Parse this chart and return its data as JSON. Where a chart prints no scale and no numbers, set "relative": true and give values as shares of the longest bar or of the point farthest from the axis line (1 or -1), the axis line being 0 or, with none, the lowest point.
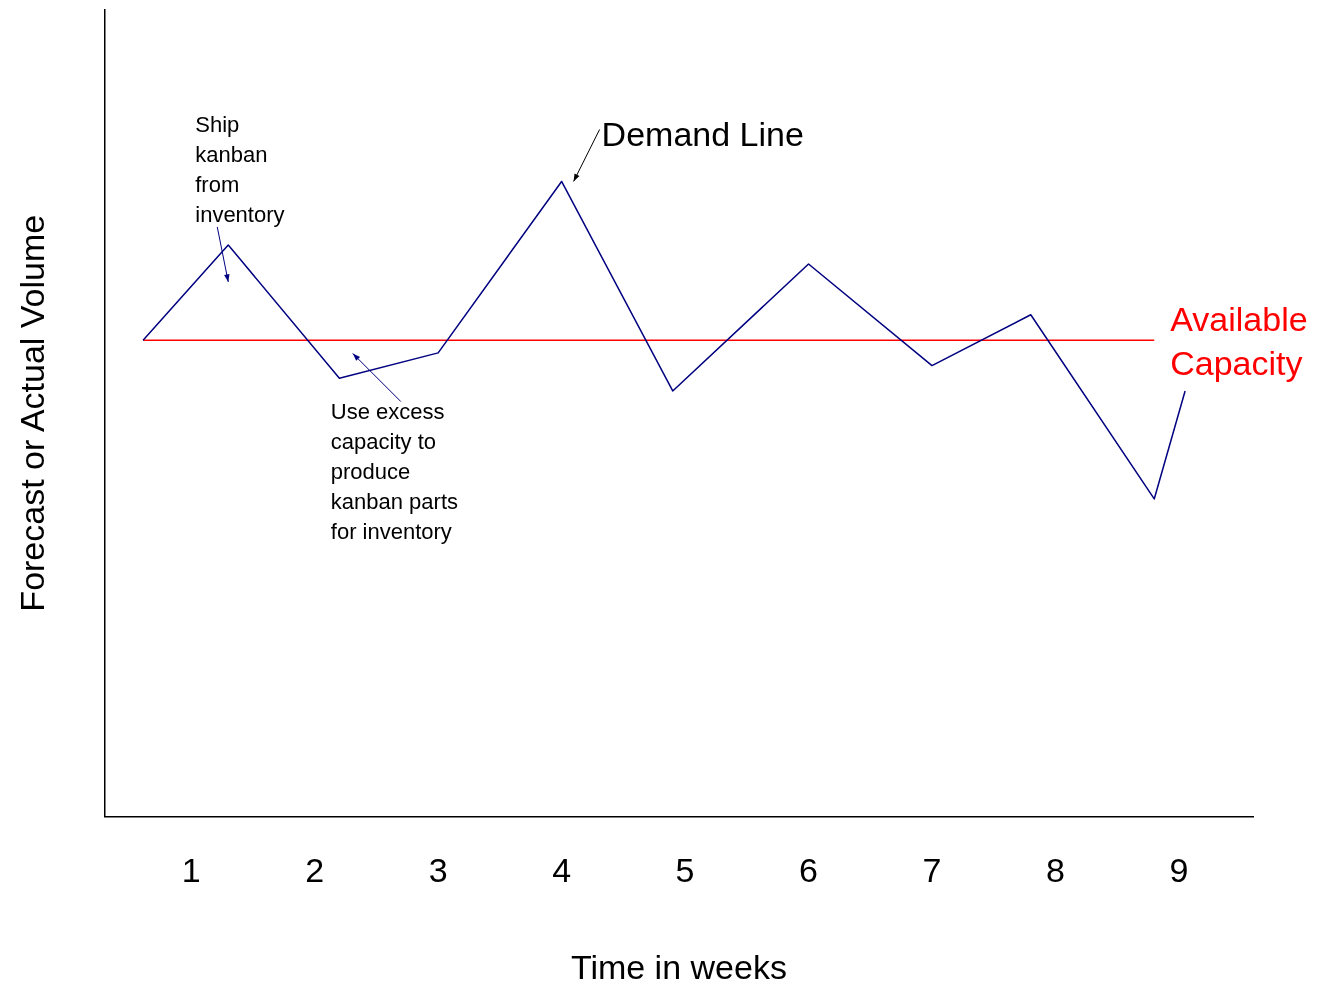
{
  "chart_data": {
    "type": "line",
    "relative": true,
    "xlabel": "Time in weeks",
    "ylabel": "Forecast or Actual Volume",
    "xlim": [
      0.3,
      9.6
    ],
    "xticks": [
      1,
      2,
      3,
      4,
      5,
      6,
      7,
      8,
      9
    ],
    "grid": false,
    "legend": false,
    "marker": "none",
    "line_style": "solid",
    "series": [
      {
        "name": "Demand Line",
        "color": "#000080",
        "x": [
          0.61,
          1.3,
          2.2,
          3,
          4,
          4.9,
          6,
          7,
          7.8,
          8.8,
          9.05
        ],
        "values": [
          0.75,
          0.9,
          0.69,
          0.73,
          1,
          0.67,
          0.87,
          0.71,
          0.79,
          0.5,
          0.67
        ]
      },
      {
        "name": "Available Capacity",
        "color": "#ff0000",
        "x": [
          0.61,
          8.8
        ],
        "values": [
          0.75,
          0.75
        ]
      }
    ],
    "annotations": [
      {
        "text": "Ship kanban from inventory",
        "x": 1.3,
        "y": 0.9
      },
      "Use excess capacity to produce kanban parts for inventory"
    ]
  }
}
